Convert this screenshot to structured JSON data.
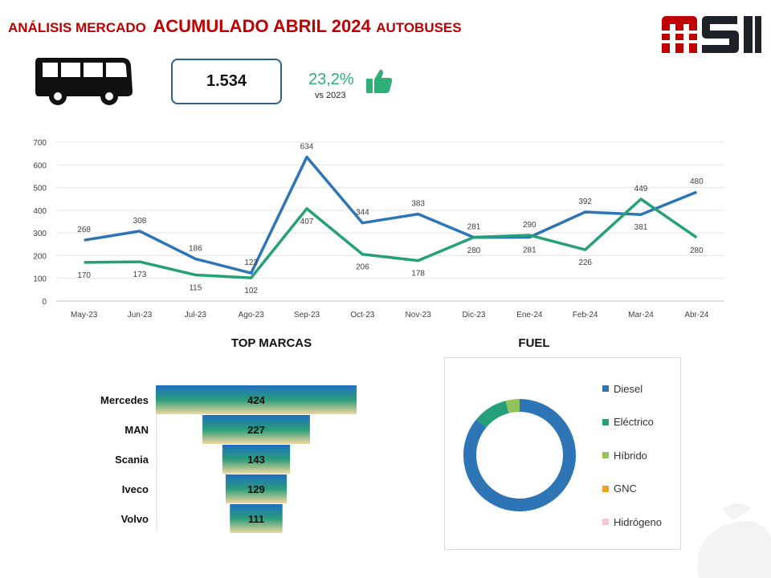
{
  "header": {
    "title_pre": "ANÁLISIS MERCADO",
    "title_main": "ACUMULADO ABRIL 2024",
    "title_post": "AUTOBUSES"
  },
  "kpi": {
    "total": "1.534",
    "growth": "23,2%",
    "growth_sub": "vs 2023"
  },
  "colors": {
    "brand_red": "#c00000",
    "series_2024": "#2e75b6",
    "series_2023": "#25a07a",
    "kpi_border": "#2e6088",
    "growth": "#2fae78"
  },
  "sections": {
    "top_marcas": "TOP MARCAS",
    "fuel": "FUEL"
  },
  "chart_data": [
    {
      "type": "line",
      "categories": [
        "May-23",
        "Jun-23",
        "Jul-23",
        "Ago-23",
        "Sep-23",
        "Oct-23",
        "Nov-23",
        "Dic-23",
        "Ene-24",
        "Feb-24",
        "Mar-24",
        "Abr-24"
      ],
      "series": [
        {
          "values": [
            268,
            308,
            186,
            123,
            634,
            344,
            383,
            280,
            281,
            392,
            381,
            480
          ]
        },
        {
          "values": [
            170,
            173,
            115,
            102,
            407,
            206,
            178,
            281,
            290,
            226,
            449,
            280
          ]
        }
      ],
      "value_labels": [
        [
          "268",
          "308",
          "186",
          "123",
          "634",
          "344",
          "383",
          "280",
          "281",
          "392",
          "381",
          "480"
        ],
        [
          "170",
          "173",
          "115",
          "102",
          "407",
          "206",
          "178",
          "281",
          "290",
          "226",
          "449",
          "280"
        ]
      ],
      "yticks": [
        "0",
        "100",
        "200",
        "300",
        "400",
        "500",
        "600",
        "700"
      ],
      "ylim": [
        0,
        700
      ],
      "grid": true,
      "legend": "none"
    },
    {
      "type": "bar",
      "title": "TOP MARCAS",
      "categories": [
        "Mercedes",
        "MAN",
        "Scania",
        "Iveco",
        "Volvo"
      ],
      "values": [
        424,
        227,
        143,
        129,
        111
      ],
      "value_labels": [
        "424",
        "227",
        "143",
        "129",
        "111"
      ],
      "orientation": "horizontal-centered"
    },
    {
      "type": "pie",
      "title": "FUEL",
      "categories": [
        "Diesel",
        "Eléctrico",
        "Híbrido",
        "GNC",
        "Hidrógeno"
      ],
      "values": [
        86,
        10,
        4,
        0,
        0
      ],
      "colors": [
        "#2e75b6",
        "#25a07a",
        "#92c25a",
        "#f0a020",
        "#f4c7cc"
      ],
      "legend": "right"
    }
  ]
}
